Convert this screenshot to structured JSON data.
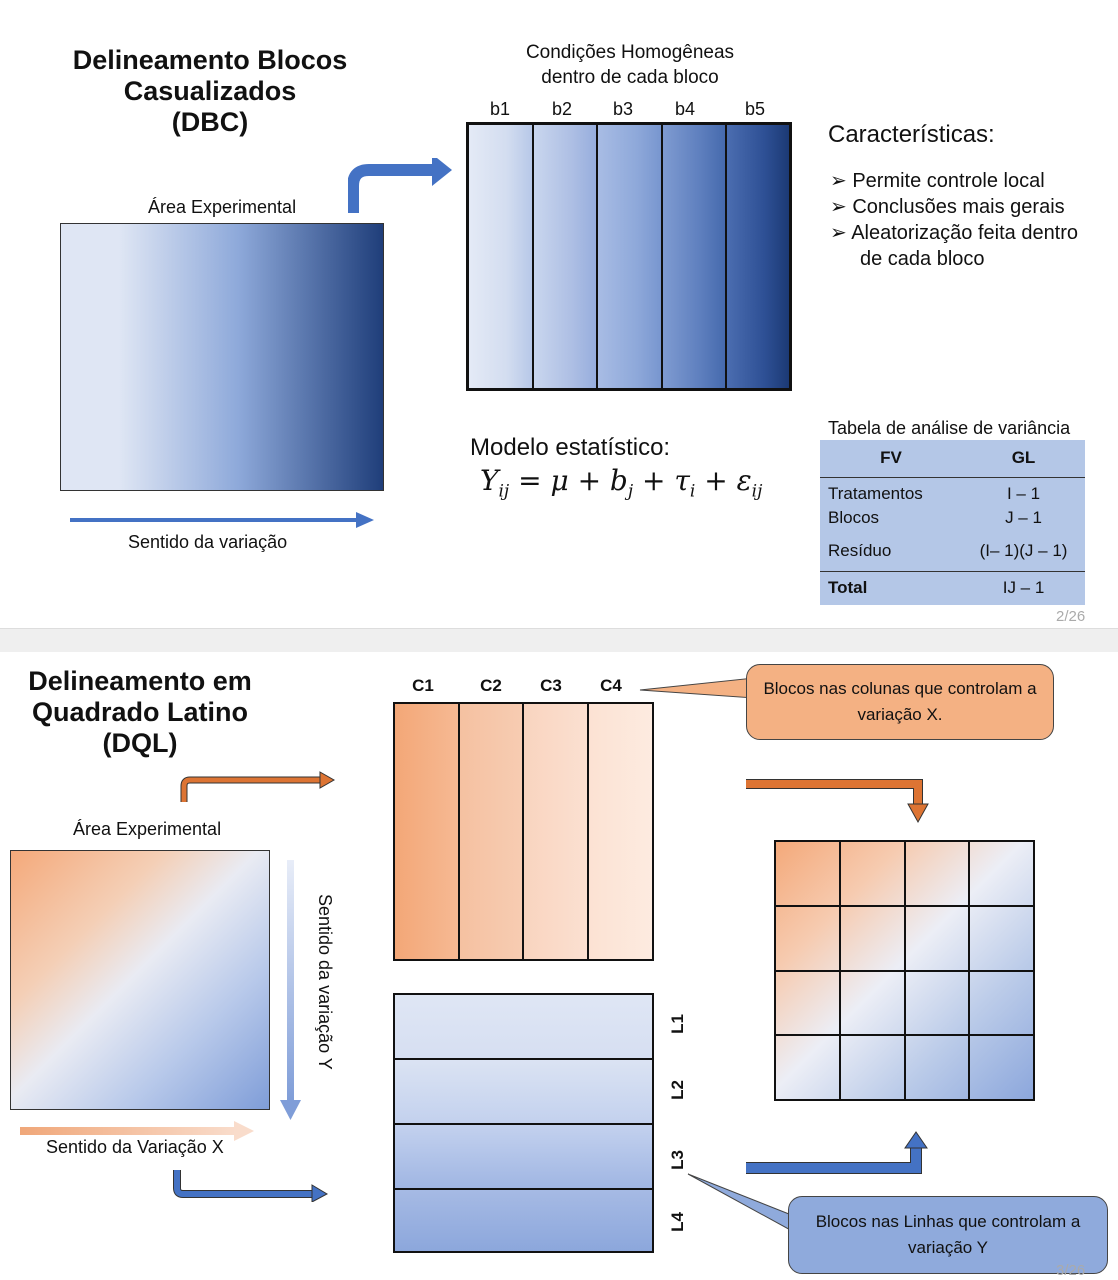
{
  "dbc": {
    "title_l1": "Delineamento Blocos",
    "title_l2": "Casualizados",
    "title_l3": "(DBC)",
    "area_label": "Área Experimental",
    "direction_label": "Sentido da variação",
    "homog_l1": "Condições Homogêneas",
    "homog_l2": "dentro de cada bloco",
    "blocks": [
      "b1",
      "b2",
      "b3",
      "b4",
      "b5"
    ],
    "features_title": "Características:",
    "features": [
      "Permite controle local",
      "Conclusões mais gerais",
      "Aleatorização feita dentro"
    ],
    "features_cont": "de cada bloco",
    "model_label": "Modelo estatístico:",
    "model_formula": "Yij = μ + bj + τi + εij",
    "table_title": "Tabela de análise de variância",
    "table_headers": [
      "FV",
      "GL"
    ],
    "table_rows": [
      {
        "fv": "Tratamentos",
        "gl": "I – 1"
      },
      {
        "fv": "Blocos",
        "gl": "J – 1"
      },
      {
        "fv": "Resíduo",
        "gl": "(I– 1)(J – 1)"
      }
    ],
    "table_total": {
      "fv": "Total",
      "gl": "IJ – 1"
    },
    "page": "2/26"
  },
  "dql": {
    "title_l1": "Delineamento em",
    "title_l2": "Quadrado Latino",
    "title_l3": "(DQL)",
    "area_label": "Área Experimental",
    "direction_y": "Sentido da variação Y",
    "direction_x": "Sentido da Variação X",
    "columns": [
      "C1",
      "C2",
      "C3",
      "C4"
    ],
    "rows": [
      "L1",
      "L2",
      "L3",
      "L4"
    ],
    "callout_columns": "Blocos nas colunas que controlam a variação X.",
    "callout_rows": "Blocos nas Linhas que controlam a variação Y",
    "page": "3/26"
  },
  "colors": {
    "blue_light": "#dfe6f4",
    "blue_dark": "#1f3e7a",
    "orange": "#f0a779",
    "orange_arrow": "#dd7433",
    "blue_arrow": "#4472c4",
    "callout_orange": "#f4b183",
    "callout_blue": "#8faadc",
    "table_bg": "#b4c7e7"
  }
}
